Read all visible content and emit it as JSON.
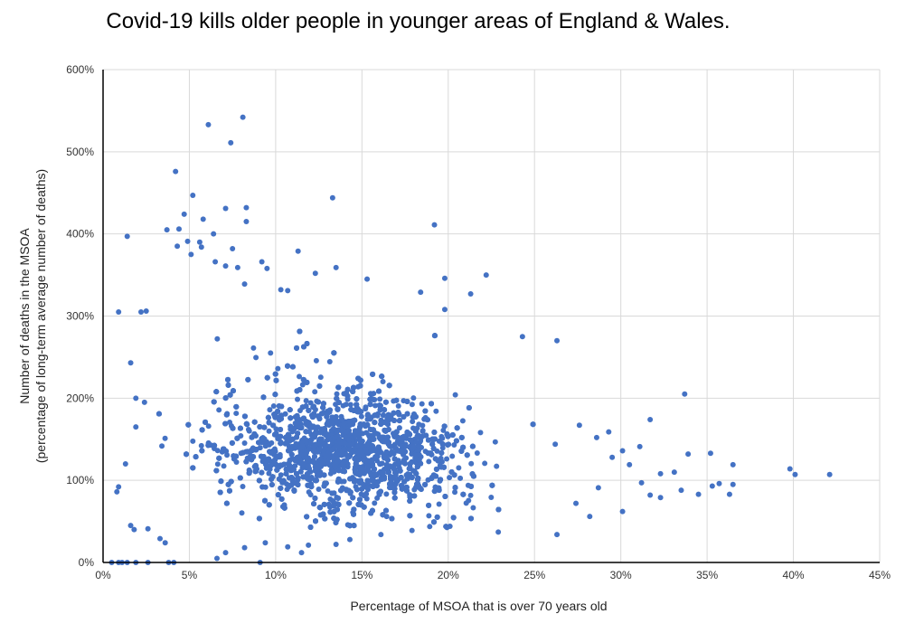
{
  "chart_data": {
    "type": "scatter",
    "title": "Covid-19  kills older people in younger areas  of England & Wales.",
    "xlabel": "Percentage of MSOA that is over 70 years old",
    "ylabel_line1": "Number  of deaths in the MSOA",
    "ylabel_line2": "(percentage of long-term  average number  of deaths)",
    "xlim": [
      0,
      0.45
    ],
    "ylim": [
      0,
      6
    ],
    "x_ticks": [
      "0%",
      "5%",
      "10%",
      "15%",
      "20%",
      "25%",
      "30%",
      "35%",
      "40%",
      "45%"
    ],
    "y_ticks": [
      "0%",
      "100%",
      "200%",
      "300%",
      "400%",
      "500%",
      "600%"
    ],
    "grid": true,
    "marker_color": "#4472C4",
    "series": [
      {
        "points": [
          [
            0.081,
            5.42
          ],
          [
            0.061,
            5.33
          ],
          [
            0.074,
            5.11
          ],
          [
            0.042,
            4.76
          ],
          [
            0.052,
            4.47
          ],
          [
            0.133,
            4.44
          ],
          [
            0.071,
            4.31
          ],
          [
            0.083,
            4.32
          ],
          [
            0.047,
            4.24
          ],
          [
            0.192,
            4.11
          ],
          [
            0.058,
            4.18
          ],
          [
            0.083,
            4.15
          ],
          [
            0.037,
            4.05
          ],
          [
            0.044,
            4.06
          ],
          [
            0.064,
            4.0
          ],
          [
            0.014,
            3.97
          ],
          [
            0.056,
            3.9
          ],
          [
            0.049,
            3.91
          ],
          [
            0.043,
            3.85
          ],
          [
            0.057,
            3.84
          ],
          [
            0.075,
            3.82
          ],
          [
            0.113,
            3.79
          ],
          [
            0.051,
            3.75
          ],
          [
            0.065,
            3.66
          ],
          [
            0.071,
            3.61
          ],
          [
            0.092,
            3.66
          ],
          [
            0.095,
            3.58
          ],
          [
            0.078,
            3.59
          ],
          [
            0.135,
            3.59
          ],
          [
            0.123,
            3.52
          ],
          [
            0.222,
            3.5
          ],
          [
            0.198,
            3.46
          ],
          [
            0.082,
            3.39
          ],
          [
            0.153,
            3.45
          ],
          [
            0.103,
            3.32
          ],
          [
            0.107,
            3.31
          ],
          [
            0.184,
            3.29
          ],
          [
            0.213,
            3.27
          ],
          [
            0.009,
            3.05
          ],
          [
            0.022,
            3.05
          ],
          [
            0.025,
            3.06
          ],
          [
            0.198,
            3.08
          ],
          [
            0.263,
            2.7
          ],
          [
            0.243,
            2.75
          ],
          [
            0.337,
            2.05
          ],
          [
            0.016,
            2.43
          ],
          [
            0.019,
            2.0
          ],
          [
            0.013,
            1.2
          ],
          [
            0.024,
            1.95
          ],
          [
            0.019,
            1.65
          ],
          [
            0.009,
            0.92
          ],
          [
            0.008,
            0.86
          ],
          [
            0.016,
            0.45
          ],
          [
            0.018,
            0.4
          ],
          [
            0.026,
            0.41
          ],
          [
            0.033,
            0.29
          ],
          [
            0.036,
            0.24
          ],
          [
            0.005,
            0.0
          ],
          [
            0.009,
            0.0
          ],
          [
            0.011,
            0.0
          ],
          [
            0.014,
            0.0
          ],
          [
            0.019,
            0.0
          ],
          [
            0.026,
            0.0
          ],
          [
            0.038,
            0.0
          ],
          [
            0.041,
            0.0
          ],
          [
            0.066,
            0.05
          ],
          [
            0.071,
            0.12
          ],
          [
            0.091,
            0.0
          ],
          [
            0.082,
            0.18
          ],
          [
            0.094,
            0.24
          ],
          [
            0.107,
            0.19
          ],
          [
            0.115,
            0.12
          ],
          [
            0.119,
            0.21
          ],
          [
            0.135,
            0.22
          ],
          [
            0.143,
            0.28
          ],
          [
            0.161,
            0.34
          ],
          [
            0.179,
            0.39
          ],
          [
            0.201,
            0.44
          ],
          [
            0.229,
            0.37
          ],
          [
            0.263,
            0.34
          ],
          [
            0.282,
            0.56
          ],
          [
            0.301,
            0.62
          ],
          [
            0.317,
            0.82
          ],
          [
            0.323,
            0.79
          ],
          [
            0.335,
            0.88
          ],
          [
            0.345,
            0.83
          ],
          [
            0.353,
            0.93
          ],
          [
            0.363,
            0.83
          ],
          [
            0.365,
            0.95
          ],
          [
            0.357,
            0.96
          ],
          [
            0.339,
            1.32
          ],
          [
            0.352,
            1.33
          ],
          [
            0.365,
            1.19
          ],
          [
            0.323,
            1.08
          ],
          [
            0.331,
            1.1
          ],
          [
            0.293,
            1.59
          ],
          [
            0.301,
            1.36
          ],
          [
            0.311,
            1.41
          ],
          [
            0.317,
            1.74
          ],
          [
            0.276,
            1.67
          ],
          [
            0.262,
            1.44
          ],
          [
            0.398,
            1.14
          ],
          [
            0.401,
            1.07
          ],
          [
            0.421,
            1.07
          ],
          [
            0.286,
            1.52
          ],
          [
            0.295,
            1.28
          ],
          [
            0.305,
            1.19
          ],
          [
            0.312,
            0.97
          ],
          [
            0.274,
            0.72
          ],
          [
            0.287,
            0.91
          ]
        ]
      }
    ]
  }
}
